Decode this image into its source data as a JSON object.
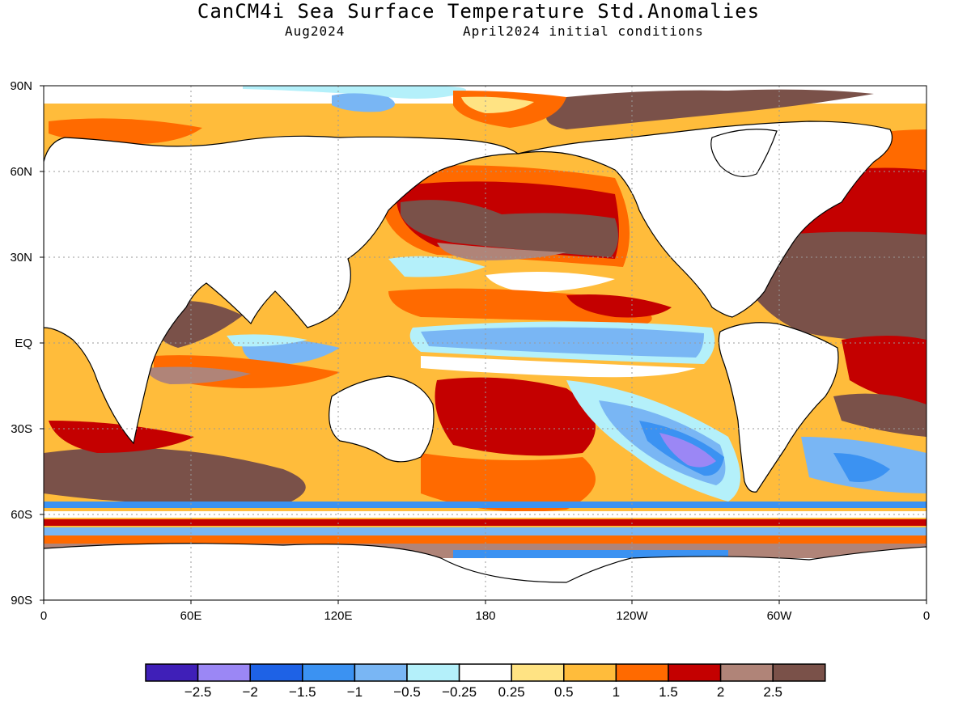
{
  "title": "CanCM4i Sea Surface Temperature Std.Anomalies",
  "valid_month": "Aug2024",
  "init_conditions": "April2024 initial conditions",
  "lat_axis_labels": [
    "90N",
    "60N",
    "30N",
    "EQ",
    "30S",
    "60S",
    "90S"
  ],
  "lon_axis_labels": [
    "0",
    "60E",
    "120E",
    "180",
    "120W",
    "60W",
    "0"
  ],
  "colorbar": {
    "colors": [
      "#3f1fb8",
      "#9b87f5",
      "#1e62e6",
      "#3b92f2",
      "#79b6f4",
      "#b4f0fa",
      "#ffffff",
      "#ffe383",
      "#ffbc3b",
      "#ff6a00",
      "#c40000",
      "#b08478",
      "#7a5149"
    ],
    "labels": [
      "-2.5",
      "-2",
      "-1.5",
      "-1",
      "-0.5",
      "-0.25",
      "0.25",
      "0.5",
      "1",
      "1.5",
      "2",
      "2.5"
    ]
  },
  "colors": {
    "land": "#ffffff",
    "coast": "#000000",
    "grid": "#9a9a9a"
  }
}
